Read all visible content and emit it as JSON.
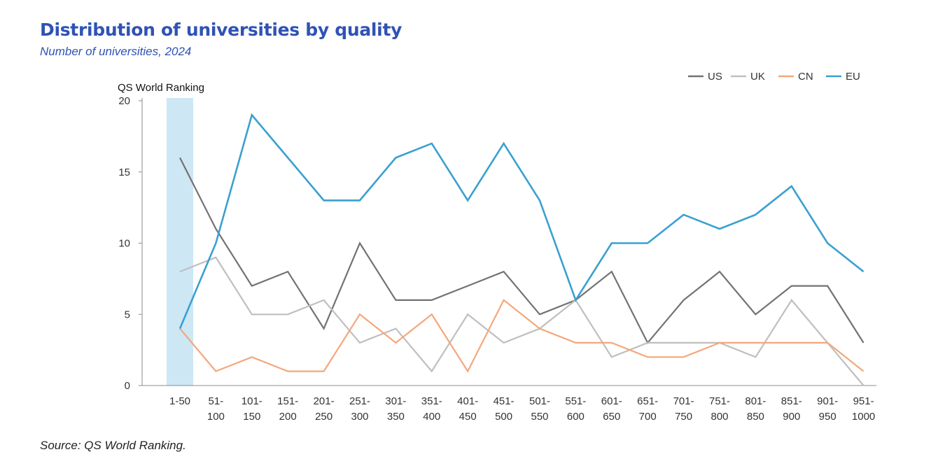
{
  "header": {
    "title": "Distribution of universities by quality",
    "subtitle": "Number of universities, 2024"
  },
  "footer": {
    "source": "Source: QS World Ranking."
  },
  "colors": {
    "US": "#767171",
    "UK": "#bfbfbf",
    "CN": "#f4a77a",
    "EU": "#3aa0d0",
    "highlight": "#cde7f5",
    "title": "#2f52b5"
  },
  "chart_data": {
    "type": "line",
    "title": "Distribution of universities by quality",
    "subtitle": "Number of universities, 2024",
    "ylabel": "QS World Ranking",
    "xlabel": "",
    "ylim": [
      0,
      20
    ],
    "yticks": [
      0,
      5,
      10,
      15,
      20
    ],
    "grid": false,
    "legend_position": "top-right",
    "highlight_category_index": 0,
    "categories": [
      [
        "1-50"
      ],
      [
        "51-",
        "100"
      ],
      [
        "101-",
        "150"
      ],
      [
        "151-",
        "200"
      ],
      [
        "201-",
        "250"
      ],
      [
        "251-",
        "300"
      ],
      [
        "301-",
        "350"
      ],
      [
        "351-",
        "400"
      ],
      [
        "401-",
        "450"
      ],
      [
        "451-",
        "500"
      ],
      [
        "501-",
        "550"
      ],
      [
        "551-",
        "600"
      ],
      [
        "601-",
        "650"
      ],
      [
        "651-",
        "700"
      ],
      [
        "701-",
        "750"
      ],
      [
        "751-",
        "800"
      ],
      [
        "801-",
        "850"
      ],
      [
        "851-",
        "900"
      ],
      [
        "901-",
        "950"
      ],
      [
        "951-",
        "1000"
      ]
    ],
    "series": [
      {
        "name": "US",
        "color": "#767171",
        "values": [
          16,
          11,
          7,
          8,
          4,
          10,
          6,
          6,
          7,
          8,
          5,
          6,
          8,
          3,
          6,
          8,
          5,
          7,
          7,
          3
        ]
      },
      {
        "name": "UK",
        "color": "#bfbfbf",
        "values": [
          8,
          9,
          5,
          5,
          6,
          3,
          4,
          1,
          5,
          3,
          4,
          6,
          2,
          3,
          3,
          3,
          2,
          6,
          3,
          0
        ]
      },
      {
        "name": "CN",
        "color": "#f4a77a",
        "values": [
          4,
          1,
          2,
          1,
          1,
          5,
          3,
          5,
          1,
          6,
          4,
          3,
          3,
          2,
          2,
          3,
          3,
          3,
          3,
          1
        ]
      },
      {
        "name": "EU",
        "color": "#3aa0d0",
        "values": [
          4,
          10,
          19,
          16,
          13,
          13,
          16,
          17,
          13,
          17,
          13,
          6,
          10,
          10,
          12,
          11,
          12,
          14,
          10,
          8
        ]
      }
    ]
  }
}
